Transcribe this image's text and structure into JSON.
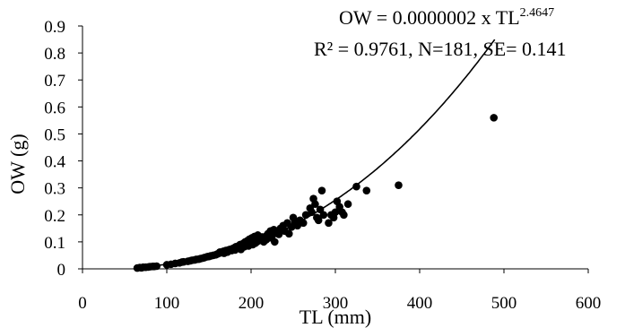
{
  "chart_data": {
    "type": "scatter",
    "xlabel": "TL (mm)",
    "ylabel": "OW (g)",
    "xlim": [
      0,
      600
    ],
    "ylim": [
      0,
      0.9
    ],
    "x_ticks": [
      "0",
      "100",
      "200",
      "300",
      "400",
      "500",
      "600"
    ],
    "y_ticks": [
      "0",
      "0.1",
      "0.2",
      "0.3",
      "0.4",
      "0.5",
      "0.6",
      "0.7",
      "0.8",
      "0.9"
    ],
    "grid": false,
    "annotations": {
      "equation_main": "OW = 0.0000002 x TL",
      "equation_exponent": "2.4647",
      "stats": "R² = 0.9761, N=181, SE=  0.141"
    },
    "trendline": {
      "type": "power",
      "a": 2e-07,
      "b": 2.4647,
      "x_range": [
        65,
        490
      ]
    },
    "series": [
      {
        "points": [
          [
            65,
            0.003
          ],
          [
            68,
            0.005
          ],
          [
            70,
            0.004
          ],
          [
            72,
            0.006
          ],
          [
            75,
            0.006
          ],
          [
            78,
            0.007
          ],
          [
            80,
            0.008
          ],
          [
            83,
            0.009
          ],
          [
            85,
            0.009
          ],
          [
            88,
            0.01
          ],
          [
            100,
            0.015
          ],
          [
            105,
            0.017
          ],
          [
            110,
            0.02
          ],
          [
            115,
            0.022
          ],
          [
            118,
            0.025
          ],
          [
            120,
            0.026
          ],
          [
            125,
            0.028
          ],
          [
            128,
            0.03
          ],
          [
            130,
            0.032
          ],
          [
            133,
            0.033
          ],
          [
            135,
            0.035
          ],
          [
            138,
            0.036
          ],
          [
            140,
            0.038
          ],
          [
            143,
            0.04
          ],
          [
            145,
            0.042
          ],
          [
            148,
            0.045
          ],
          [
            150,
            0.046
          ],
          [
            152,
            0.048
          ],
          [
            155,
            0.05
          ],
          [
            158,
            0.052
          ],
          [
            160,
            0.055
          ],
          [
            162,
            0.058
          ],
          [
            163,
            0.062
          ],
          [
            165,
            0.06
          ],
          [
            167,
            0.065
          ],
          [
            168,
            0.058
          ],
          [
            170,
            0.068
          ],
          [
            172,
            0.062
          ],
          [
            173,
            0.07
          ],
          [
            175,
            0.072
          ],
          [
            177,
            0.068
          ],
          [
            178,
            0.075
          ],
          [
            180,
            0.078
          ],
          [
            181,
            0.07
          ],
          [
            182,
            0.082
          ],
          [
            183,
            0.076
          ],
          [
            185,
            0.085
          ],
          [
            186,
            0.08
          ],
          [
            187,
            0.09
          ],
          [
            188,
            0.072
          ],
          [
            190,
            0.088
          ],
          [
            191,
            0.095
          ],
          [
            192,
            0.082
          ],
          [
            193,
            0.1
          ],
          [
            195,
            0.092
          ],
          [
            196,
            0.105
          ],
          [
            197,
            0.085
          ],
          [
            198,
            0.11
          ],
          [
            199,
            0.098
          ],
          [
            200,
            0.1
          ],
          [
            201,
            0.115
          ],
          [
            202,
            0.09
          ],
          [
            203,
            0.108
          ],
          [
            204,
            0.12
          ],
          [
            205,
            0.095
          ],
          [
            206,
            0.112
          ],
          [
            207,
            0.1
          ],
          [
            208,
            0.125
          ],
          [
            210,
            0.105
          ],
          [
            212,
            0.11
          ],
          [
            213,
            0.118
          ],
          [
            215,
            0.1
          ],
          [
            217,
            0.12
          ],
          [
            218,
            0.108
          ],
          [
            220,
            0.13
          ],
          [
            222,
            0.115
          ],
          [
            223,
            0.14
          ],
          [
            225,
            0.122
          ],
          [
            227,
            0.145
          ],
          [
            228,
            0.1
          ],
          [
            230,
            0.135
          ],
          [
            233,
            0.128
          ],
          [
            235,
            0.15
          ],
          [
            238,
            0.16
          ],
          [
            240,
            0.14
          ],
          [
            243,
            0.17
          ],
          [
            245,
            0.13
          ],
          [
            248,
            0.155
          ],
          [
            250,
            0.19
          ],
          [
            252,
            0.175
          ],
          [
            255,
            0.16
          ],
          [
            258,
            0.18
          ],
          [
            262,
            0.17
          ],
          [
            265,
            0.2
          ],
          [
            270,
            0.225
          ],
          [
            272,
            0.21
          ],
          [
            274,
            0.26
          ],
          [
            276,
            0.24
          ],
          [
            278,
            0.19
          ],
          [
            280,
            0.18
          ],
          [
            282,
            0.22
          ],
          [
            284,
            0.29
          ],
          [
            286,
            0.2
          ],
          [
            292,
            0.17
          ],
          [
            295,
            0.2
          ],
          [
            298,
            0.19
          ],
          [
            300,
            0.21
          ],
          [
            302,
            0.25
          ],
          [
            305,
            0.23
          ],
          [
            308,
            0.21
          ],
          [
            310,
            0.2
          ],
          [
            315,
            0.24
          ],
          [
            325,
            0.305
          ],
          [
            337,
            0.29
          ],
          [
            375,
            0.31
          ],
          [
            488,
            0.56
          ]
        ]
      }
    ]
  }
}
